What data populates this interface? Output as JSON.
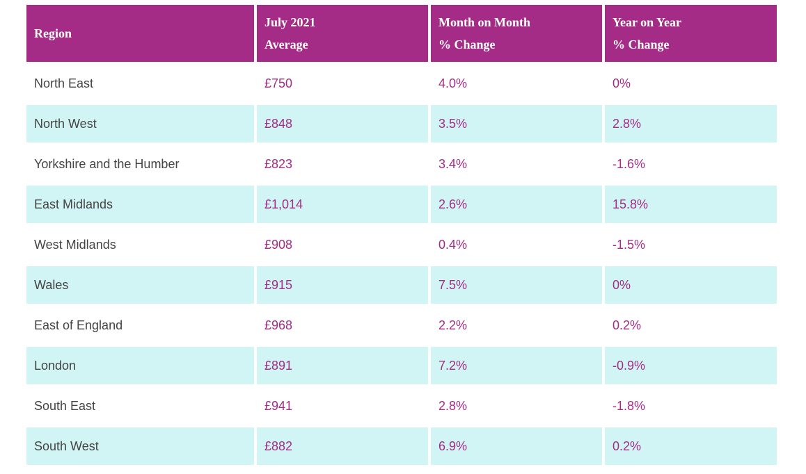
{
  "table": {
    "headers": [
      [
        "Region"
      ],
      [
        "July 2021",
        "Average"
      ],
      [
        "Month on Month",
        "% Change"
      ],
      [
        "Year on Year",
        "% Change"
      ]
    ],
    "rows": [
      {
        "region": "North East",
        "average": "£750",
        "mom": "4.0%",
        "yoy": "0%"
      },
      {
        "region": "North West",
        "average": "£848",
        "mom": "3.5%",
        "yoy": "2.8%"
      },
      {
        "region": "Yorkshire and the Humber",
        "average": "£823",
        "mom": "3.4%",
        "yoy": "-1.6%"
      },
      {
        "region": "East Midlands",
        "average": "£1,014",
        "mom": "2.6%",
        "yoy": "15.8%"
      },
      {
        "region": "West Midlands",
        "average": "£908",
        "mom": "0.4%",
        "yoy": "-1.5%"
      },
      {
        "region": "Wales",
        "average": "£915",
        "mom": "7.5%",
        "yoy": "0%"
      },
      {
        "region": "East of England",
        "average": "£968",
        "mom": "2.2%",
        "yoy": "0.2%"
      },
      {
        "region": "London",
        "average": "£891",
        "mom": "7.2%",
        "yoy": "-0.9%"
      },
      {
        "region": "South East",
        "average": "£941",
        "mom": "2.8%",
        "yoy": "-1.8%"
      },
      {
        "region": "South West",
        "average": "£882",
        "mom": "6.9%",
        "yoy": "0.2%"
      }
    ]
  },
  "colors": {
    "header_bg": "#a42c86",
    "header_text": "#ffffff",
    "stripe_bg": "#d1f5f4",
    "value_text": "#a42c86",
    "region_text": "#444444"
  }
}
